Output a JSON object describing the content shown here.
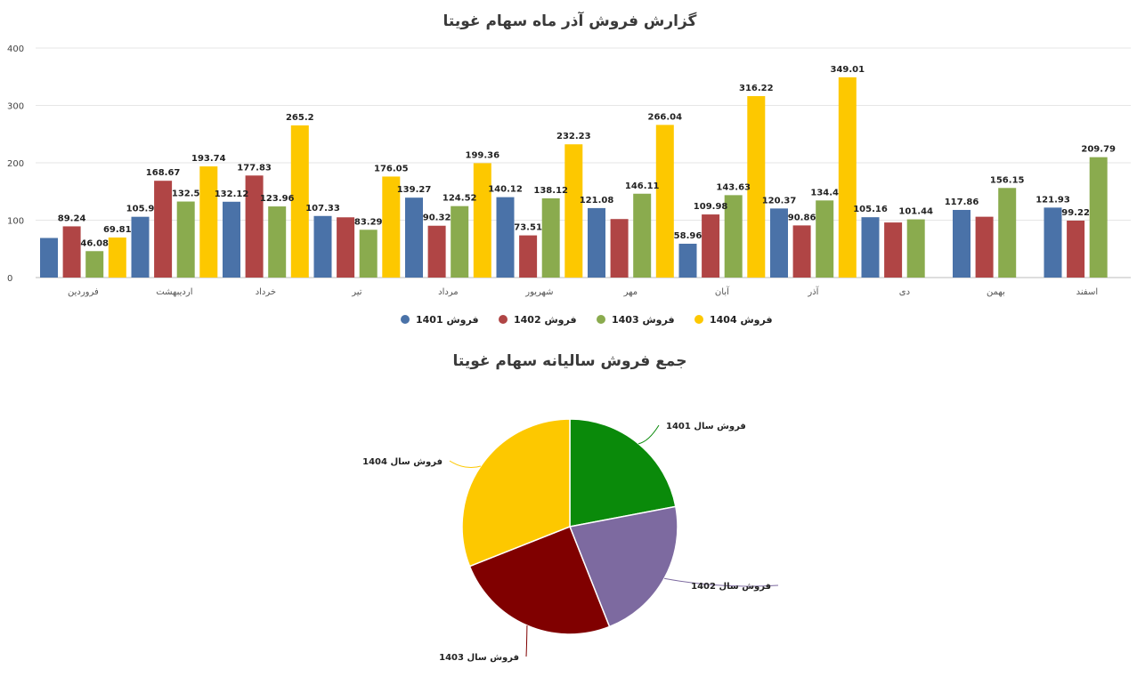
{
  "chart_data": [
    {
      "type": "bar",
      "title": "گزارش فروش آذر ماه سهام غویتا",
      "categories": [
        "فروردین",
        "اردیبهشت",
        "خرداد",
        "تیر",
        "مرداد",
        "شهریور",
        "مهر",
        "آبان",
        "آذر",
        "دی",
        "بهمن",
        "اسفند"
      ],
      "yticks": [
        0,
        100,
        200,
        300,
        400
      ],
      "ylim": [
        0,
        400
      ],
      "grid": true,
      "legend_position": "bottom",
      "series": [
        {
          "name": "فروش 1401",
          "color": "#4a72a8",
          "values": [
            69,
            105.9,
            132.12,
            107.33,
            139.27,
            140.12,
            121.08,
            58.96,
            120.37,
            105.16,
            117.86,
            121.93
          ],
          "labels": [
            "",
            "105.9",
            "132.12",
            "107.33",
            "139.27",
            "140.12",
            "121.08",
            "58.96",
            "120.37",
            "105.16",
            "117.86",
            "121.93"
          ]
        },
        {
          "name": "فروش 1402",
          "color": "#b04545",
          "values": [
            89.24,
            168.67,
            177.83,
            105,
            90.32,
            73.51,
            102,
            109.98,
            90.86,
            96,
            106,
            99.22
          ],
          "labels": [
            "89.24",
            "168.67",
            "177.83",
            "",
            "90.32",
            "73.51",
            "",
            "109.98",
            "90.86",
            "",
            "",
            "99.22"
          ]
        },
        {
          "name": "فروش 1403",
          "color": "#8aab4e",
          "values": [
            46.08,
            132.5,
            123.96,
            83.29,
            124.52,
            138.12,
            146.11,
            143.63,
            134.4,
            101.44,
            156.15,
            209.79
          ],
          "labels": [
            "46.08",
            "132.5",
            "123.96",
            "83.29",
            "124.52",
            "138.12",
            "146.11",
            "143.63",
            "134.4",
            "101.44",
            "156.15",
            "209.79"
          ]
        },
        {
          "name": "فروش 1404",
          "color": "#fdc800",
          "values": [
            69.81,
            193.74,
            265.2,
            176.05,
            199.36,
            232.23,
            266.04,
            316.22,
            349.01,
            null,
            null,
            null
          ],
          "labels": [
            "69.81",
            "193.74",
            "265.2",
            "176.05",
            "199.36",
            "232.23",
            "266.04",
            "316.22",
            "349.01",
            "",
            "",
            ""
          ]
        }
      ]
    },
    {
      "type": "pie",
      "title": "جمع فروش سالیانه سهام غویتا",
      "slices": [
        {
          "label": "فروش سال 1401",
          "value": 22,
          "color": "#0a8a0a"
        },
        {
          "label": "فروش سال 1402",
          "value": 22,
          "color": "#7d6aa0"
        },
        {
          "label": "فروش سال 1403",
          "value": 25,
          "color": "#800000"
        },
        {
          "label": "فروش سال 1404",
          "value": 31,
          "color": "#fdc800"
        }
      ]
    }
  ]
}
